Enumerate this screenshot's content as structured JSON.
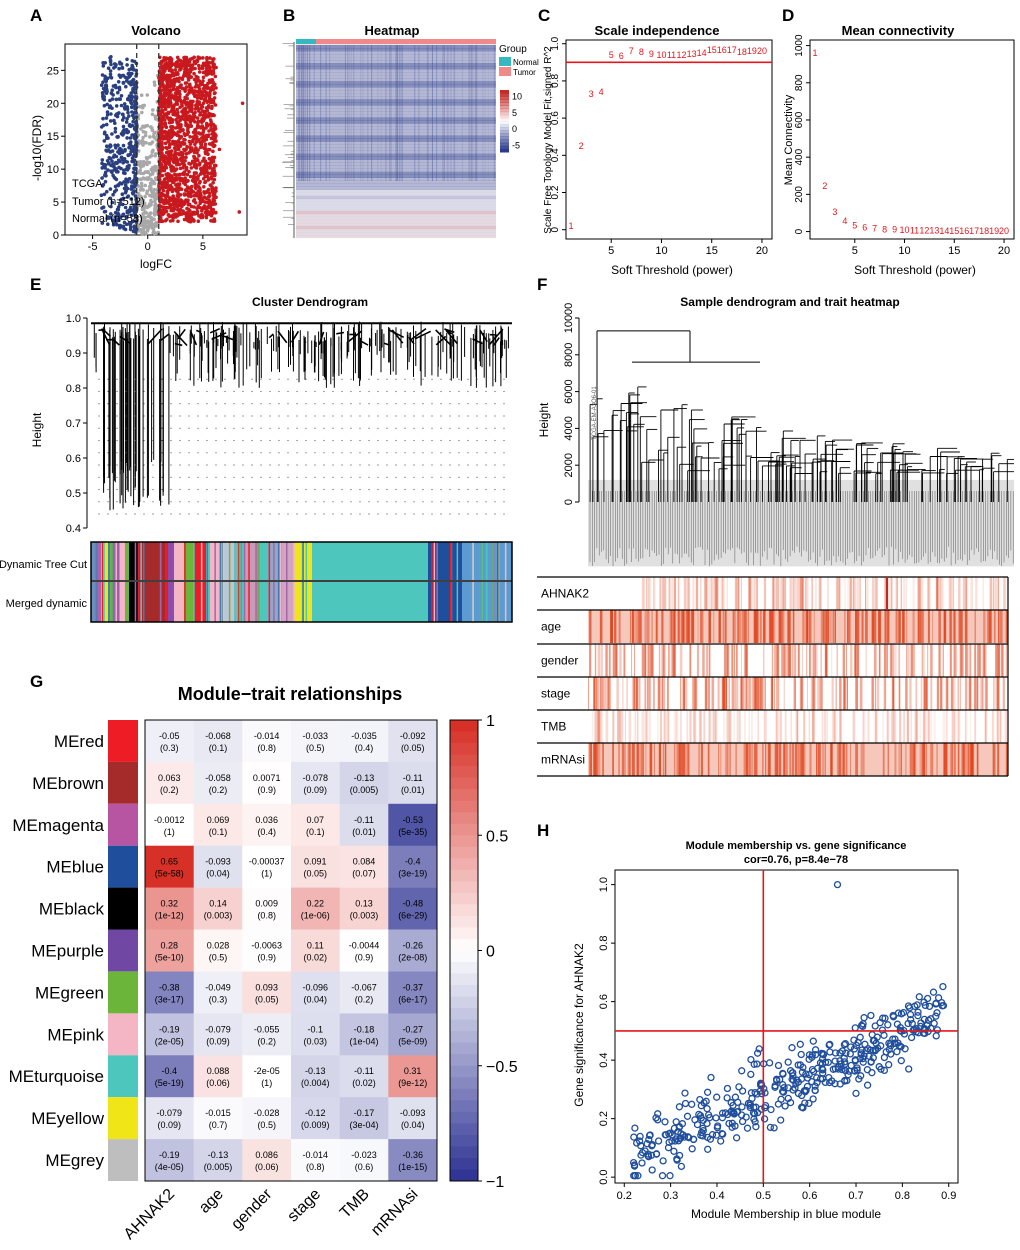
{
  "panel_labels": {
    "A": "A",
    "B": "B",
    "C": "C",
    "D": "D",
    "E": "E",
    "F": "F",
    "G": "G",
    "H": "H"
  },
  "colors": {
    "blue_pts": "#2a3f7f",
    "red_pts": "#c8191f",
    "grey_pts": "#a8a8a8",
    "red_line": "#e3161b",
    "heat_neg": "#2b3a8c",
    "heat_pos": "#c62a27",
    "normal": "#36b8c1",
    "tumor": "#f08a8a",
    "h_pts": "#1f4e9c"
  },
  "chart_data": [
    {
      "id": "A",
      "type": "scatter",
      "title": "Volcano",
      "xlabel": "logFC",
      "ylabel": "-log10(FDR)",
      "xlim": [
        -7.5,
        9
      ],
      "ylim": [
        0,
        29
      ],
      "xticks": [
        -5,
        0,
        5
      ],
      "yticks": [
        0,
        5,
        10,
        15,
        20,
        25
      ],
      "fc_threshold": [
        -1,
        1
      ],
      "annotations": [
        "TCGA",
        "Tumor (n=512)",
        "Normal (n=58)"
      ],
      "series": [
        {
          "name": "down",
          "color": "blue",
          "n_points": 520
        },
        {
          "name": "nonsig",
          "color": "grey",
          "n_points": 320
        },
        {
          "name": "up",
          "color": "red",
          "n_points": 1500
        }
      ]
    },
    {
      "id": "B",
      "type": "heatmap",
      "title": "Heatmap",
      "legend_title": "Group",
      "groups": [
        "Normal",
        "Tumor"
      ],
      "colorbar_ticks": [
        10,
        5,
        0,
        -5
      ]
    },
    {
      "id": "C",
      "type": "scatter",
      "title": "Scale independence",
      "xlabel": "Soft Threshold (power)",
      "ylabel": "Scale Free Topology Model Fit,signed R^2",
      "xlim": [
        0.5,
        21
      ],
      "ylim": [
        -0.05,
        1.02
      ],
      "xticks": [
        5,
        10,
        15,
        20
      ],
      "yticks": [
        0,
        0.2,
        0.4,
        0.6,
        0.8,
        1.0
      ],
      "hline": 0.9,
      "x": [
        1,
        2,
        3,
        4,
        5,
        6,
        7,
        8,
        9,
        10,
        11,
        12,
        13,
        14,
        15,
        16,
        17,
        18,
        19,
        20
      ],
      "y": [
        0.02,
        0.45,
        0.73,
        0.74,
        0.94,
        0.935,
        0.96,
        0.955,
        0.945,
        0.94,
        0.94,
        0.94,
        0.945,
        0.95,
        0.965,
        0.965,
        0.965,
        0.955,
        0.96,
        0.96
      ]
    },
    {
      "id": "D",
      "type": "scatter",
      "title": "Mean connectivity",
      "xlabel": "Soft Threshold (power)",
      "ylabel": "Mean Connectivity",
      "xlim": [
        0.5,
        21
      ],
      "ylim": [
        -40,
        1030
      ],
      "xticks": [
        5,
        10,
        15,
        20
      ],
      "yticks": [
        0,
        200,
        400,
        600,
        800,
        1000
      ],
      "x": [
        1,
        2,
        3,
        4,
        5,
        6,
        7,
        8,
        9,
        10,
        11,
        12,
        13,
        14,
        15,
        16,
        17,
        18,
        19,
        20
      ],
      "y": [
        960,
        245,
        105,
        58,
        33,
        23,
        16,
        12,
        10,
        8,
        6,
        5,
        5,
        4,
        4,
        3,
        3,
        3,
        3,
        2
      ]
    },
    {
      "id": "E",
      "type": "dendrogram",
      "title": "Cluster Dendrogram",
      "ylabel": "Height",
      "ylim": [
        0.38,
        1.0
      ],
      "yticks": [
        0.4,
        0.5,
        0.6,
        0.7,
        0.8,
        0.9,
        1.0
      ],
      "row_labels": [
        "Dynamic Tree Cut",
        "Merged dynamic"
      ]
    },
    {
      "id": "F",
      "type": "dendrogram",
      "title": "Sample dendrogram and trait heatmap",
      "ylabel": "Height",
      "ylim": [
        0,
        10000
      ],
      "yticks": [
        0,
        2000,
        4000,
        6000,
        8000,
        10000
      ],
      "outlier_label": "TCGA-EM-A3O6-01",
      "traits": [
        "AHNAK2",
        "age",
        "gender",
        "stage",
        "TMB",
        "mRNAsi"
      ]
    },
    {
      "id": "G",
      "type": "heatmap",
      "title": "Module−trait relationships",
      "rows": [
        "MEred",
        "MEbrown",
        "MEmagenta",
        "MEblue",
        "MEblack",
        "MEpurple",
        "MEgreen",
        "MEpink",
        "MEturquoise",
        "MEyellow",
        "MEgrey"
      ],
      "row_colors": [
        "#ee1c24",
        "#a52a2a",
        "#b855a3",
        "#1f4e9c",
        "#000000",
        "#7047a3",
        "#6ab53a",
        "#f4b6c5",
        "#4dc6bd",
        "#f0e617",
        "#bebebe"
      ],
      "cols": [
        "AHNAK2",
        "age",
        "gender",
        "stage",
        "TMB",
        "mRNAsi"
      ],
      "values": [
        [
          -0.05,
          -0.068,
          -0.014,
          -0.033,
          -0.035,
          -0.092
        ],
        [
          0.063,
          -0.058,
          0.0071,
          -0.078,
          -0.13,
          -0.11
        ],
        [
          -0.0012,
          0.069,
          0.036,
          0.07,
          -0.11,
          -0.53
        ],
        [
          0.65,
          -0.093,
          -0.00037,
          0.091,
          0.084,
          -0.4
        ],
        [
          0.32,
          0.14,
          0.009,
          0.22,
          0.13,
          -0.48
        ],
        [
          0.28,
          0.028,
          -0.0063,
          0.11,
          -0.0044,
          -0.26
        ],
        [
          -0.38,
          -0.049,
          0.093,
          -0.096,
          -0.067,
          -0.37
        ],
        [
          -0.19,
          -0.079,
          -0.055,
          -0.1,
          -0.18,
          -0.27
        ],
        [
          -0.4,
          0.088,
          -2e-05,
          -0.13,
          -0.11,
          0.31
        ],
        [
          -0.079,
          -0.015,
          -0.028,
          -0.12,
          -0.17,
          -0.093
        ],
        [
          -0.19,
          -0.13,
          0.086,
          -0.014,
          -0.023,
          -0.36
        ]
      ],
      "value_labels": [
        [
          "-0.05",
          "-0.068",
          "-0.014",
          "-0.033",
          "-0.035",
          "-0.092"
        ],
        [
          "0.063",
          "-0.058",
          "0.0071",
          "-0.078",
          "-0.13",
          "-0.11"
        ],
        [
          "-0.0012",
          "0.069",
          "0.036",
          "0.07",
          "-0.11",
          "-0.53"
        ],
        [
          "0.65",
          "-0.093",
          "-0.00037",
          "0.091",
          "0.084",
          "-0.4"
        ],
        [
          "0.32",
          "0.14",
          "0.009",
          "0.22",
          "0.13",
          "-0.48"
        ],
        [
          "0.28",
          "0.028",
          "-0.0063",
          "0.11",
          "-0.0044",
          "-0.26"
        ],
        [
          "-0.38",
          "-0.049",
          "0.093",
          "-0.096",
          "-0.067",
          "-0.37"
        ],
        [
          "-0.19",
          "-0.079",
          "-0.055",
          "-0.1",
          "-0.18",
          "-0.27"
        ],
        [
          "-0.4",
          "0.088",
          "-2e-05",
          "-0.13",
          "-0.11",
          "0.31"
        ],
        [
          "-0.079",
          "-0.015",
          "-0.028",
          "-0.12",
          "-0.17",
          "-0.093"
        ],
        [
          "-0.19",
          "-0.13",
          "0.086",
          "-0.014",
          "-0.023",
          "-0.36"
        ]
      ],
      "pvalues": [
        [
          "(0.3)",
          "(0.1)",
          "(0.8)",
          "(0.5)",
          "(0.4)",
          "(0.05)"
        ],
        [
          "(0.2)",
          "(0.2)",
          "(0.9)",
          "(0.09)",
          "(0.005)",
          "(0.01)"
        ],
        [
          "(1)",
          "(0.1)",
          "(0.4)",
          "(0.1)",
          "(0.01)",
          "(5e-35)"
        ],
        [
          "(5e-58)",
          "(0.04)",
          "(1)",
          "(0.05)",
          "(0.07)",
          "(3e-19)"
        ],
        [
          "(1e-12)",
          "(0.003)",
          "(0.8)",
          "(1e-06)",
          "(0.003)",
          "(6e-29)"
        ],
        [
          "(5e-10)",
          "(0.5)",
          "(0.9)",
          "(0.02)",
          "(0.9)",
          "(2e-08)"
        ],
        [
          "(3e-17)",
          "(0.3)",
          "(0.05)",
          "(0.04)",
          "(0.2)",
          "(6e-17)"
        ],
        [
          "(2e-05)",
          "(0.09)",
          "(0.2)",
          "(0.03)",
          "(1e-04)",
          "(5e-09)"
        ],
        [
          "(5e-19)",
          "(0.06)",
          "(1)",
          "(0.004)",
          "(0.02)",
          "(9e-12)"
        ],
        [
          "(0.09)",
          "(0.7)",
          "(0.5)",
          "(0.009)",
          "(3e-04)",
          "(0.04)"
        ],
        [
          "(4e-05)",
          "(0.005)",
          "(0.06)",
          "(0.8)",
          "(0.6)",
          "(1e-15)"
        ]
      ],
      "colorbar_ticks": [
        "1",
        "0.5",
        "0",
        "−0.5",
        "−1"
      ],
      "colorbar_values": [
        1,
        0.5,
        0,
        -0.5,
        -1
      ]
    },
    {
      "id": "H",
      "type": "scatter",
      "title": "Module membership vs. gene significance",
      "subtitle": "cor=0.76, p=8.4e−78",
      "xlabel": "Module Membership in blue module",
      "ylabel": "Gene significance for  AHNAK2",
      "xlim": [
        0.18,
        0.92
      ],
      "ylim": [
        -0.02,
        1.05
      ],
      "xticks": [
        0.2,
        0.3,
        0.4,
        0.5,
        0.6,
        0.7,
        0.8,
        0.9
      ],
      "yticks": [
        0.0,
        0.2,
        0.4,
        0.6,
        0.8,
        1.0
      ],
      "vline": 0.5,
      "hline": 0.5,
      "cor": 0.76,
      "n_points": 430,
      "outlier": [
        0.66,
        1.0
      ]
    }
  ]
}
